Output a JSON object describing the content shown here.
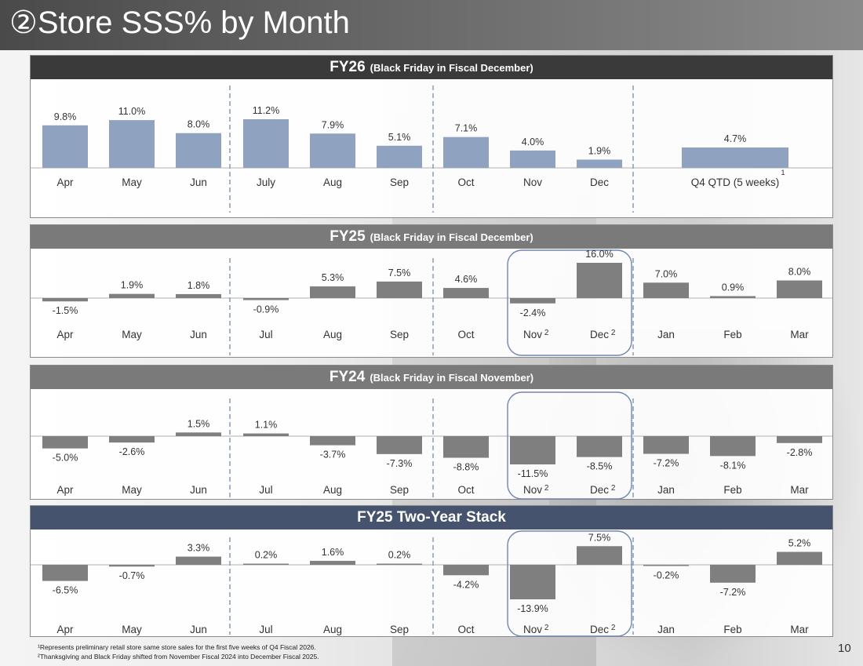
{
  "page": {
    "title": "②Store SSS% by Month",
    "page_number": "10"
  },
  "colors": {
    "fy26_bar": "#8fa3c0",
    "bar": "#7f7f7f",
    "fy26_header": "#3a3a3a",
    "fy25_header": "#7a7a7a",
    "fy24_header": "#7a7a7a",
    "stack_header": "#45536f",
    "divider": "#8f9fbf",
    "highlight": "#6f86b4"
  },
  "chart_data": [
    {
      "type": "bar",
      "id": "fy26",
      "title": "FY26",
      "subtitle": "(Black Friday in Fiscal December)",
      "categories": [
        "Apr",
        "May",
        "Jun",
        "July",
        "Aug",
        "Sep",
        "Oct",
        "Nov",
        "Dec",
        "Q4 QTD (5 weeks)"
      ],
      "values": [
        9.8,
        11.0,
        8.0,
        11.2,
        7.9,
        5.1,
        7.1,
        4.0,
        1.9,
        4.7
      ],
      "labels": [
        "9.8%",
        "11.0%",
        "8.0%",
        "11.2%",
        "7.9%",
        "5.1%",
        "7.1%",
        "4.0%",
        "1.9%",
        "4.7%"
      ],
      "superscripts": [
        "",
        "",
        "",
        "",
        "",
        "",
        "",
        "",
        "",
        "1"
      ],
      "ylim": [
        0,
        12
      ]
    },
    {
      "type": "bar",
      "id": "fy25",
      "title": "FY25",
      "subtitle": "(Black Friday in Fiscal December)",
      "categories": [
        "Apr",
        "May",
        "Jun",
        "Jul",
        "Aug",
        "Sep",
        "Oct",
        "Nov",
        "Dec",
        "Jan",
        "Feb",
        "Mar"
      ],
      "values": [
        -1.5,
        1.9,
        1.8,
        -0.9,
        5.3,
        7.5,
        4.6,
        -2.4,
        16.0,
        7.0,
        0.9,
        8.0
      ],
      "labels": [
        "-1.5%",
        "1.9%",
        "1.8%",
        "-0.9%",
        "5.3%",
        "7.5%",
        "4.6%",
        "-2.4%",
        "16.0%",
        "7.0%",
        "0.9%",
        "8.0%"
      ],
      "superscripts": [
        "",
        "",
        "",
        "",
        "",
        "",
        "",
        "2",
        "2",
        "",
        "",
        ""
      ],
      "highlight": [
        "Nov",
        "Dec"
      ],
      "ylim": [
        -5,
        16
      ]
    },
    {
      "type": "bar",
      "id": "fy24",
      "title": "FY24",
      "subtitle": "(Black Friday in Fiscal November)",
      "categories": [
        "Apr",
        "May",
        "Jun",
        "Jul",
        "Aug",
        "Sep",
        "Oct",
        "Nov",
        "Dec",
        "Jan",
        "Feb",
        "Mar"
      ],
      "values": [
        -5.0,
        -2.6,
        1.5,
        1.1,
        -3.7,
        -7.3,
        -8.8,
        -11.5,
        -8.5,
        -7.2,
        -8.1,
        -2.8
      ],
      "labels": [
        "-5.0%",
        "-2.6%",
        "1.5%",
        "1.1%",
        "-3.7%",
        "-7.3%",
        "-8.8%",
        "-11.5%",
        "-8.5%",
        "-7.2%",
        "-8.1%",
        "-2.8%"
      ],
      "superscripts": [
        "",
        "",
        "",
        "",
        "",
        "",
        "",
        "2",
        "2",
        "",
        "",
        ""
      ],
      "highlight": [
        "Nov",
        "Dec"
      ],
      "ylim": [
        -12,
        3
      ]
    },
    {
      "type": "bar",
      "id": "stack",
      "title": "FY25 Two-Year Stack",
      "subtitle": "",
      "categories": [
        "Apr",
        "May",
        "Jun",
        "Jul",
        "Aug",
        "Sep",
        "Oct",
        "Nov",
        "Dec",
        "Jan",
        "Feb",
        "Mar"
      ],
      "values": [
        -6.5,
        -0.7,
        3.3,
        0.2,
        1.6,
        0.2,
        -4.2,
        -13.9,
        7.5,
        -0.2,
        -7.2,
        5.2
      ],
      "labels": [
        "-6.5%",
        "-0.7%",
        "3.3%",
        "0.2%",
        "1.6%",
        "0.2%",
        "-4.2%",
        "-13.9%",
        "7.5%",
        "-0.2%",
        "-7.2%",
        "5.2%"
      ],
      "superscripts": [
        "",
        "",
        "",
        "",
        "",
        "",
        "",
        "2",
        "2",
        "",
        "",
        ""
      ],
      "highlight": [
        "Nov",
        "Dec"
      ],
      "ylim": [
        -14,
        8
      ]
    }
  ],
  "footnotes": [
    "¹Represents preliminary retail store same store sales for the first five weeks of Q4 Fiscal 2026.",
    "²Thanksgiving and Black Friday shifted from November Fiscal 2024 into December Fiscal 2025."
  ]
}
